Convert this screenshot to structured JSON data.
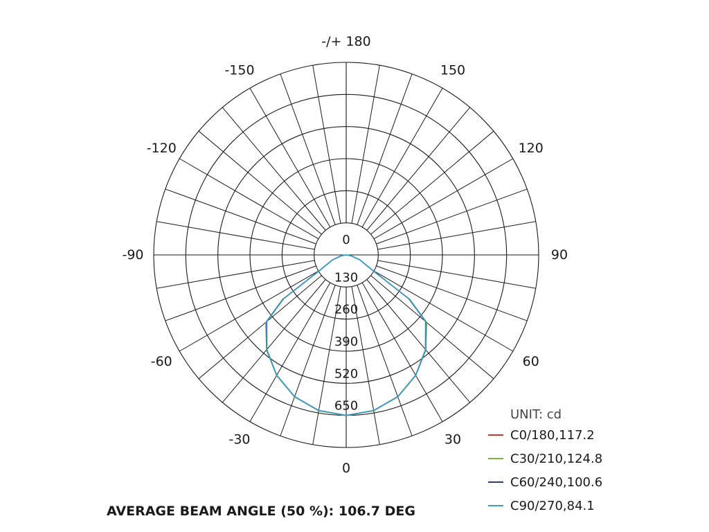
{
  "chart_data": {
    "type": "polar",
    "unit_label": "UNIT: cd",
    "r_max": 780,
    "r_ticks": [
      0,
      130,
      260,
      390,
      520,
      650
    ],
    "r_tick_labels": [
      "0",
      "130",
      "260",
      "390",
      "520",
      "650"
    ],
    "angle_labels": [
      {
        "angle": 180,
        "text": "-/+ 180"
      },
      {
        "angle": 150,
        "text": "150"
      },
      {
        "angle": -150,
        "text": "-150"
      },
      {
        "angle": 120,
        "text": "120"
      },
      {
        "angle": -120,
        "text": "-120"
      },
      {
        "angle": 90,
        "text": "90"
      },
      {
        "angle": -90,
        "text": "-90"
      },
      {
        "angle": 60,
        "text": "60"
      },
      {
        "angle": -60,
        "text": "-60"
      },
      {
        "angle": 30,
        "text": "30"
      },
      {
        "angle": -30,
        "text": "-30"
      },
      {
        "angle": 0,
        "text": "0"
      }
    ],
    "gamma": [
      -90,
      -80,
      -70,
      -60,
      -55,
      -50,
      -40,
      -30,
      -20,
      -10,
      0,
      10,
      20,
      30,
      40,
      50,
      55,
      60,
      70,
      80,
      90
    ],
    "series": [
      {
        "name": "C0/180,117.2",
        "color": "#c0392b",
        "values": [
          0,
          20,
          60,
          120,
          310,
          420,
          500,
          563,
          611,
          640,
          650,
          640,
          611,
          563,
          500,
          420,
          310,
          120,
          60,
          20,
          0
        ]
      },
      {
        "name": "C30/210,124.8",
        "color": "#7cb342",
        "values": [
          0,
          20,
          60,
          120,
          315,
          425,
          502,
          564,
          612,
          641,
          651,
          641,
          612,
          564,
          502,
          425,
          315,
          120,
          60,
          20,
          0
        ]
      },
      {
        "name": "C60/240,100.6",
        "color": "#2e3b7a",
        "values": [
          0,
          20,
          60,
          120,
          312,
          422,
          501,
          563,
          611,
          640,
          650,
          640,
          611,
          563,
          501,
          422,
          312,
          120,
          60,
          20,
          0
        ]
      },
      {
        "name": "C90/270,84.1",
        "color": "#3a9fc4",
        "values": [
          0,
          20,
          60,
          120,
          310,
          420,
          500,
          563,
          611,
          640,
          650,
          640,
          611,
          563,
          500,
          420,
          310,
          120,
          60,
          20,
          0
        ]
      }
    ],
    "footer": "AVERAGE BEAM ANGLE (50 %): 106.7 DEG"
  }
}
